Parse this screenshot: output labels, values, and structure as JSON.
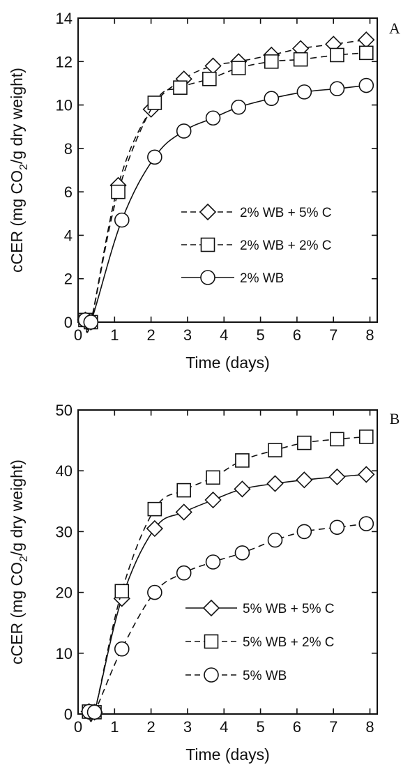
{
  "chart_data": [
    {
      "type": "line",
      "panel_label": "A",
      "xlabel": "Time (days)",
      "ylabel": {
        "prefix": "cCER (mg CO",
        "sub": "2",
        "suffix": "/g dry weight)"
      },
      "xlim": [
        0,
        8.2
      ],
      "ylim": [
        0,
        14
      ],
      "xticks": [
        0,
        1,
        2,
        3,
        4,
        5,
        6,
        7,
        8
      ],
      "yticks": [
        0,
        2,
        4,
        6,
        8,
        10,
        12,
        14
      ],
      "legend_position": "center-right",
      "series": [
        {
          "name": "2% WB + 5% C",
          "marker": "diamond",
          "line": "dashed",
          "x": [
            0.2,
            0.35,
            1.1,
            2.0,
            2.9,
            3.7,
            4.4,
            5.3,
            6.1,
            7.0,
            7.9
          ],
          "y": [
            0.1,
            0.0,
            6.3,
            9.8,
            11.2,
            11.8,
            12.0,
            12.3,
            12.6,
            12.8,
            13.0
          ]
        },
        {
          "name": "2% WB + 2% C",
          "marker": "square",
          "line": "dashed",
          "x": [
            0.2,
            0.35,
            1.1,
            2.1,
            2.8,
            3.6,
            4.4,
            5.3,
            6.1,
            7.1,
            7.9
          ],
          "y": [
            0.1,
            0.0,
            6.0,
            10.1,
            10.8,
            11.2,
            11.7,
            12.0,
            12.1,
            12.3,
            12.4
          ]
        },
        {
          "name": "2% WB",
          "marker": "circle",
          "line": "solid",
          "x": [
            0.2,
            0.35,
            1.2,
            2.1,
            2.9,
            3.7,
            4.4,
            5.3,
            6.2,
            7.1,
            7.9
          ],
          "y": [
            0.1,
            0.0,
            4.7,
            7.6,
            8.8,
            9.4,
            9.9,
            10.3,
            10.6,
            10.75,
            10.9
          ]
        }
      ]
    },
    {
      "type": "line",
      "panel_label": "B",
      "xlabel": "Time (days)",
      "ylabel": {
        "prefix": "cCER (mg CO",
        "sub": "2",
        "suffix": "/g dry weight)"
      },
      "xlim": [
        0,
        8.2
      ],
      "ylim": [
        0,
        50
      ],
      "xticks": [
        0,
        1,
        2,
        3,
        4,
        5,
        6,
        7,
        8
      ],
      "yticks": [
        0,
        10,
        20,
        30,
        40,
        50
      ],
      "legend_position": "center-right",
      "series": [
        {
          "name": "5% WB + 5% C",
          "marker": "diamond",
          "line": "solid",
          "x": [
            0.3,
            0.45,
            1.2,
            2.1,
            2.9,
            3.7,
            4.5,
            5.4,
            6.2,
            7.1,
            7.9
          ],
          "y": [
            0.4,
            0.3,
            19.0,
            30.5,
            33.2,
            35.2,
            37.0,
            37.9,
            38.5,
            39.0,
            39.4
          ]
        },
        {
          "name": "5% WB + 2% C",
          "marker": "square",
          "line": "dashed",
          "x": [
            0.3,
            0.45,
            1.2,
            2.1,
            2.9,
            3.7,
            4.5,
            5.4,
            6.2,
            7.1,
            7.9
          ],
          "y": [
            0.4,
            0.3,
            20.2,
            33.7,
            36.8,
            38.9,
            41.7,
            43.4,
            44.6,
            45.2,
            45.6
          ]
        },
        {
          "name": "5% WB",
          "marker": "circle",
          "line": "dashed",
          "x": [
            0.3,
            0.45,
            1.2,
            2.1,
            2.9,
            3.7,
            4.5,
            5.4,
            6.2,
            7.1,
            7.9
          ],
          "y": [
            0.4,
            0.3,
            10.7,
            20.0,
            23.2,
            25.0,
            26.5,
            28.6,
            30.0,
            30.7,
            31.3
          ]
        }
      ]
    }
  ]
}
